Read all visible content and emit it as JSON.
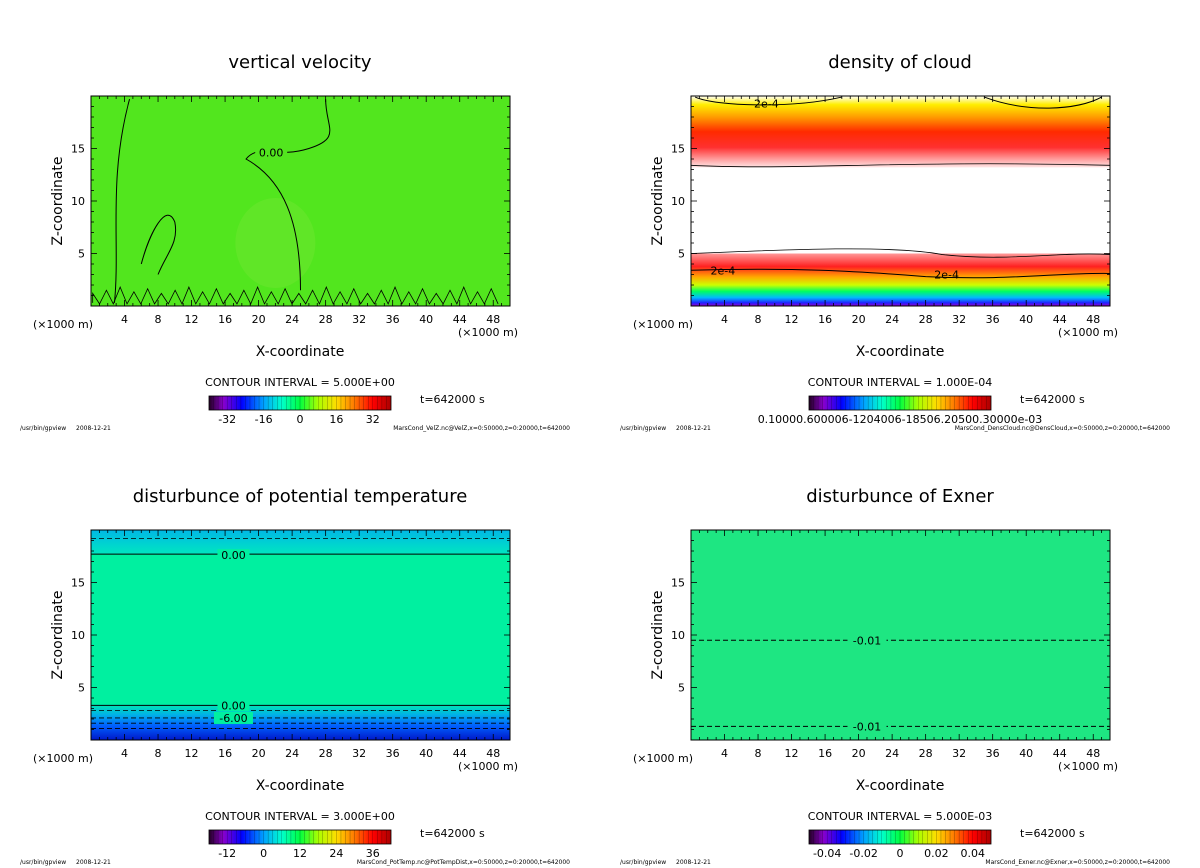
{
  "footer_program": "/usr/bin/gpview",
  "footer_date": "2008-12-21",
  "chart_data": [
    {
      "type": "heatmap",
      "title": "vertical velocity",
      "xlabel": "X-coordinate",
      "ylabel": "Z-coordinate",
      "x_unit": "(×1000 m)",
      "xlim": [
        0,
        50
      ],
      "ylim": [
        0,
        20
      ],
      "x_ticks": [
        4,
        8,
        12,
        16,
        20,
        24,
        28,
        32,
        36,
        40,
        44,
        48
      ],
      "y_ticks": [
        5,
        10,
        15
      ],
      "contour_interval": "CONTOUR INTERVAL = 5.000E+00",
      "time_label": "t=642000 s",
      "colorbar_ticks": [
        "-32",
        "-16",
        "0",
        "16",
        "32"
      ],
      "colorbar_range": [
        -40,
        40
      ],
      "contour_labels": [
        {
          "text": "0.00",
          "x": 21.5,
          "z": 14.6
        }
      ],
      "fill_color": "#52e61e",
      "footer_file": "MarsCond_VelZ.nc@VelZ,x=0:50000,z=0:20000,t=642000"
    },
    {
      "type": "heatmap",
      "title": "density of cloud",
      "xlabel": "X-coordinate",
      "ylabel": "Z-coordinate",
      "x_unit": "(×1000 m)",
      "xlim": [
        0,
        50
      ],
      "ylim": [
        0,
        20
      ],
      "x_ticks": [
        4,
        8,
        12,
        16,
        20,
        24,
        28,
        32,
        36,
        40,
        44,
        48
      ],
      "y_ticks": [
        5,
        10,
        15
      ],
      "contour_interval": "CONTOUR INTERVAL = 1.000E-04",
      "time_label": "t=642000 s",
      "colorbar_ticks_text": "0.10000.600006-1204006-18506.20500.30000e-03",
      "contour_labels": [
        {
          "text": "2e-4",
          "x": 9.0,
          "z": 19.3
        },
        {
          "text": "2e-4",
          "x": 3.8,
          "z": 3.4
        },
        {
          "text": "2e-4",
          "x": 30.5,
          "z": 3.0
        }
      ],
      "footer_file": "MarsCond_DensCloud.nc@DensCloud,x=0:50000,z=0:20000,t=642000"
    },
    {
      "type": "heatmap",
      "title": "disturbunce of potential temperature",
      "xlabel": "X-coordinate",
      "ylabel": "Z-coordinate",
      "x_unit": "(×1000 m)",
      "xlim": [
        0,
        50
      ],
      "ylim": [
        0,
        20
      ],
      "x_ticks": [
        4,
        8,
        12,
        16,
        20,
        24,
        28,
        32,
        36,
        40,
        44,
        48
      ],
      "y_ticks": [
        5,
        10,
        15
      ],
      "contour_interval": "CONTOUR INTERVAL = 3.000E+00",
      "time_label": "t=642000 s",
      "colorbar_ticks": [
        "-12",
        "0",
        "12",
        "24",
        "36"
      ],
      "colorbar_range": [
        -18,
        42
      ],
      "contour_labels": [
        {
          "text": "0.00",
          "x": 17.0,
          "z": 17.6
        },
        {
          "text": "0.00",
          "x": 17.0,
          "z": 3.3
        },
        {
          "text": "-6.00",
          "x": 17.0,
          "z": 2.1
        }
      ],
      "fill_color": "#00f0a0",
      "footer_file": "MarsCond_PotTemp.nc@PotTempDist,x=0:50000,z=0:20000,t=642000"
    },
    {
      "type": "heatmap",
      "title": "disturbunce of Exner",
      "xlabel": "X-coordinate",
      "ylabel": "Z-coordinate",
      "x_unit": "(×1000 m)",
      "xlim": [
        0,
        50
      ],
      "ylim": [
        0,
        20
      ],
      "x_ticks": [
        4,
        8,
        12,
        16,
        20,
        24,
        28,
        32,
        36,
        40,
        44,
        48
      ],
      "y_ticks": [
        5,
        10,
        15
      ],
      "contour_interval": "CONTOUR INTERVAL = 5.000E-03",
      "time_label": "t=642000 s",
      "colorbar_ticks": [
        "-0.04",
        "-0.02",
        "0",
        "0.02",
        "0.04"
      ],
      "colorbar_range": [
        -0.05,
        0.05
      ],
      "contour_labels": [
        {
          "text": "-0.01",
          "x": 21.0,
          "z": 9.5
        },
        {
          "text": "-0.01",
          "x": 21.0,
          "z": 1.3
        }
      ],
      "fill_color": "#1ee682",
      "footer_file": "MarsCond_Exner.nc@Exner,x=0:50000,z=0:20000,t=642000"
    }
  ]
}
